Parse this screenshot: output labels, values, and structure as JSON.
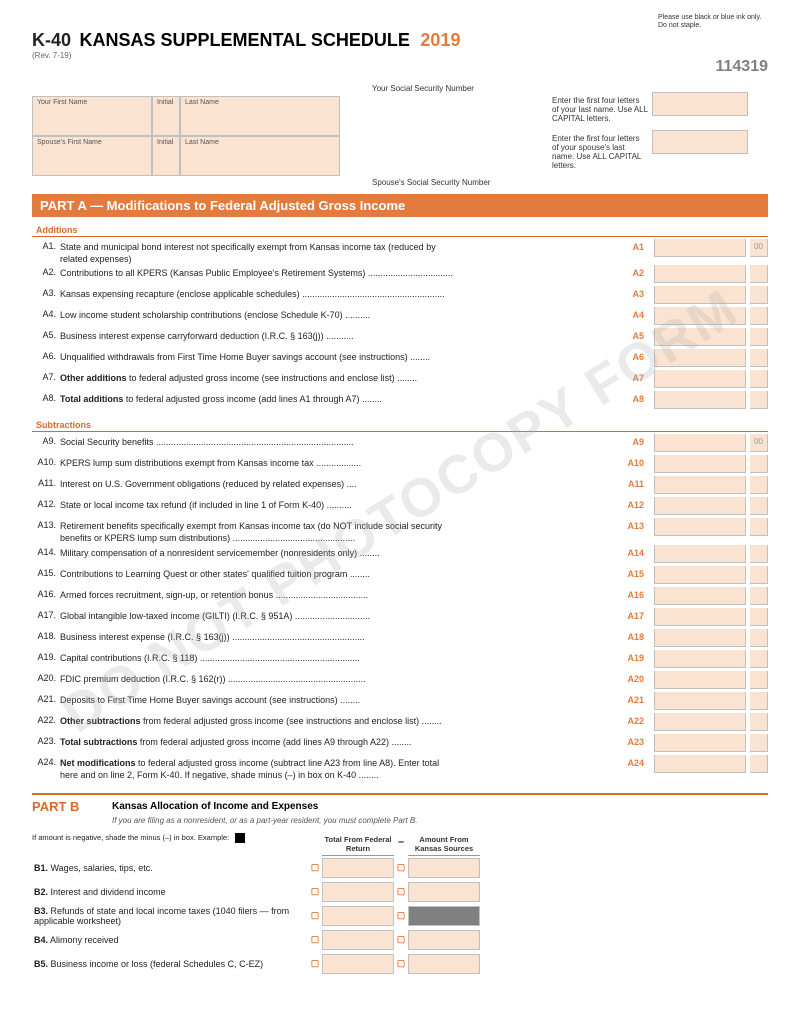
{
  "header": {
    "form_code": "K-40",
    "title": "KANSAS SUPPLEMENTAL SCHEDULE",
    "year": "2019",
    "revision": "(Rev. 7-19)",
    "print_instructions": "Please use black or blue ink only. Do not staple.",
    "form_number": "114319"
  },
  "name_block": {
    "your_first": "Your First Name",
    "initial": "Initial",
    "last_name": "Last Name",
    "spouse_first": "Spouse's First Name",
    "spouse_initial": "Initial",
    "spouse_last": "Last Name",
    "ssn_label_1": "Enter the first four letters of your last name. Use ALL CAPITAL letters.",
    "ssn_label_2": "Enter the first four letters of your spouse's last name. Use ALL CAPITAL letters.",
    "your_ssn": "Your Social Security Number",
    "spouse_ssn": "Spouse's Social Security Number"
  },
  "partA": {
    "banner": "PART A — Modifications to Federal Adjusted Gross Income",
    "additions_label": "Additions",
    "subtractions_label": "Subtractions"
  },
  "lines": [
    {
      "num": "A1.",
      "text": "State and municipal bond interest not specifically exempt from Kansas income tax (reduced by related expenses)",
      "lbl": "A1"
    },
    {
      "num": "A2.",
      "text": "Contributions to all KPERS (Kansas Public Employee's Retirement Systems) ..................................",
      "lbl": "A2"
    },
    {
      "num": "A3.",
      "text": "Kansas expensing recapture (enclose applicable schedules) .........................................................",
      "lbl": "A3"
    },
    {
      "num": "A4.",
      "text": "Low income student scholarship contributions (enclose Schedule K-70) ..........",
      "lbl": "A4"
    },
    {
      "num": "A5.",
      "text": "Business interest expense carryforward deduction (I.R.C. § 163(j)) ...........",
      "lbl": "A5"
    },
    {
      "num": "A6.",
      "text": "Unqualified withdrawals from First Time Home Buyer savings account (see instructions) ........",
      "lbl": "A6"
    },
    {
      "num": "A7.",
      "text": "<b>Other additions</b> to federal adjusted gross income (see instructions and enclose list) ........",
      "lbl": "A7"
    },
    {
      "num": "A8.",
      "text": "<b>Total additions</b> to federal adjusted gross income (add lines A1 through A7) ........",
      "lbl": "A8"
    }
  ],
  "sub_lines": [
    {
      "num": "A9.",
      "text": "Social Security benefits ...............................................................................",
      "lbl": "A9"
    },
    {
      "num": "A10.",
      "text": "KPERS lump sum distributions exempt from Kansas income tax  ..................",
      "lbl": "A10"
    },
    {
      "num": "A11.",
      "text": "Interest on U.S. Government obligations (reduced by related expenses) ....",
      "lbl": "A11"
    },
    {
      "num": "A12.",
      "text": "State or local income tax refund (if included in line 1 of Form K-40) ..........",
      "lbl": "A12"
    },
    {
      "num": "A13.",
      "text": "Retirement benefits specifically exempt from Kansas income tax (do NOT include social security benefits or KPERS lump sum distributions) .................................................",
      "lbl": "A13"
    },
    {
      "num": "A14.",
      "text": "Military compensation of a nonresident servicemember (nonresidents only) ........",
      "lbl": "A14"
    },
    {
      "num": "A15.",
      "text": "Contributions to Learning Quest or other states' qualified tuition program ........",
      "lbl": "A15"
    },
    {
      "num": "A16.",
      "text": "Armed forces recruitment, sign-up, or retention bonus .....................................",
      "lbl": "A16"
    },
    {
      "num": "A17.",
      "text": "Global intangible low-taxed income (GILTI) (I.R.C. § 951A) ..............................",
      "lbl": "A17"
    },
    {
      "num": "A18.",
      "text": "Business interest expense (I.R.C. § 163(j)) .....................................................",
      "lbl": "A18"
    },
    {
      "num": "A19.",
      "text": "Capital contributions (I.R.C. § 118) ................................................................",
      "lbl": "A19"
    },
    {
      "num": "A20.",
      "text": "FDIC premium deduction (I.R.C. § 162(r)) .......................................................",
      "lbl": "A20"
    },
    {
      "num": "A21.",
      "text": "Deposits to First Time Home Buyer savings account (see instructions) ........",
      "lbl": "A21"
    },
    {
      "num": "A22.",
      "text": "<b>Other subtractions</b> from federal adjusted gross income (see instructions and enclose list) ........",
      "lbl": "A22"
    },
    {
      "num": "A23.",
      "text": "<b>Total subtractions</b> from federal adjusted gross income (add lines A9 through A22) ........",
      "lbl": "A23"
    },
    {
      "num": "A24.",
      "text": "<b>Net modifications</b> to federal adjusted gross income (subtract line A23 from line A8). Enter total here and on line 2, Form K-40. If negative, shade minus (–) in box on K-40 ........",
      "lbl": "A24"
    }
  ],
  "partB": {
    "label": "PART B",
    "title": "Kansas Allocation of Income and Expenses",
    "subtitle": "If you are filing as a nonresident, or as a part-year resident, you must complete Part B.",
    "instructions": "If amount is negative, shade the minus (–) in box. Example:",
    "cols": [
      "Total From Federal Return",
      "Amount From Kansas Sources"
    ],
    "rows": [
      {
        "num": "B1.",
        "text": "Wages, salaries, tips, etc."
      },
      {
        "num": "B2.",
        "text": "Interest and dividend income"
      },
      {
        "num": "B3.",
        "text": "Refunds of state and local income taxes (1040 filers — from applicable worksheet)"
      },
      {
        "num": "B4.",
        "text": "Alimony received"
      },
      {
        "num": "B5.",
        "text": "Business income or loss (federal Schedules C, C-EZ)"
      }
    ]
  },
  "watermark": "DO NOT PHOTOCOPY FORM",
  "cents_header": "00",
  "colors": {
    "accent": "#e37b3e",
    "shade": "#fbe3d2"
  }
}
